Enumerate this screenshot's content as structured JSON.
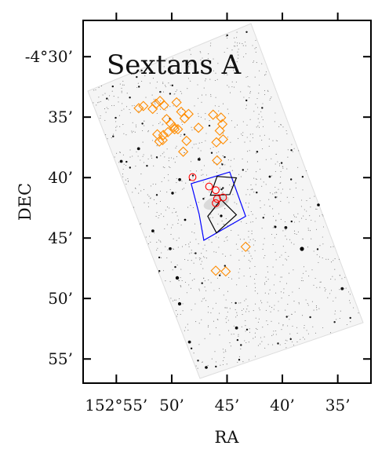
{
  "chart_data": {
    "type": "scatter",
    "title": "Sextans A",
    "xlabel": "RA",
    "ylabel": "DEC",
    "xlim": [
      152.9667,
      152.5333
    ],
    "ylim": [
      -4.95,
      -4.45
    ],
    "x_tick_values": [
      152.9167,
      152.8333,
      152.75,
      152.6667,
      152.5833
    ],
    "x_tick_labels": [
      "152°55’",
      "50’",
      "45’",
      "40’",
      "35’"
    ],
    "y_tick_values": [
      -4.5,
      -4.5833,
      -4.6667,
      -4.75,
      -4.8333,
      -4.9167
    ],
    "y_tick_labels": [
      "-4°30’",
      "35’",
      "40’",
      "45’",
      "50’",
      "55’"
    ],
    "grid": false,
    "background_image": "optical sky image of the Sextans A field, stars shown as dark points",
    "series": [
      {
        "marker": "diamond-open",
        "color": "#ff8c00",
        "points": [
          [
            152.883,
            -4.571
          ],
          [
            152.876,
            -4.568
          ],
          [
            152.862,
            -4.572
          ],
          [
            152.857,
            -4.565
          ],
          [
            152.851,
            -4.561
          ],
          [
            152.845,
            -4.567
          ],
          [
            152.826,
            -4.563
          ],
          [
            152.819,
            -4.576
          ],
          [
            152.814,
            -4.585
          ],
          [
            152.808,
            -4.579
          ],
          [
            152.841,
            -4.586
          ],
          [
            152.835,
            -4.592
          ],
          [
            152.83,
            -4.597
          ],
          [
            152.824,
            -4.6
          ],
          [
            152.855,
            -4.607
          ],
          [
            152.846,
            -4.608
          ],
          [
            152.839,
            -4.604
          ],
          [
            152.829,
            -4.6
          ],
          [
            152.852,
            -4.617
          ],
          [
            152.847,
            -4.615
          ],
          [
            152.811,
            -4.616
          ],
          [
            152.816,
            -4.631
          ],
          [
            152.771,
            -4.58
          ],
          [
            152.759,
            -4.584
          ],
          [
            152.757,
            -4.593
          ],
          [
            152.761,
            -4.602
          ],
          [
            152.756,
            -4.614
          ],
          [
            152.766,
            -4.618
          ],
          [
            152.765,
            -4.643
          ],
          [
            152.722,
            -4.762
          ],
          [
            152.767,
            -4.795
          ],
          [
            152.752,
            -4.796
          ],
          [
            152.793,
            -4.598
          ]
        ]
      },
      {
        "marker": "circle-open",
        "color": "#ff0000",
        "points": [
          [
            152.802,
            -4.666
          ],
          [
            152.777,
            -4.679
          ],
          [
            152.767,
            -4.684
          ],
          [
            152.765,
            -4.696
          ],
          [
            152.767,
            -4.702
          ],
          [
            152.756,
            -4.694
          ]
        ]
      }
    ],
    "footprints": [
      {
        "color": "#0000ff",
        "vertices": [
          [
            152.804,
            -4.675
          ],
          [
            152.746,
            -4.659
          ],
          [
            152.722,
            -4.72
          ],
          [
            152.785,
            -4.753
          ],
          [
            152.792,
            -4.717
          ]
        ]
      },
      {
        "color": "#000000",
        "vertices": [
          [
            152.765,
            -4.665
          ],
          [
            152.736,
            -4.667
          ],
          [
            152.746,
            -4.69
          ],
          [
            152.775,
            -4.691
          ]
        ]
      },
      {
        "color": "#000000",
        "vertices": [
          [
            152.759,
            -4.697
          ],
          [
            152.779,
            -4.72
          ],
          [
            152.766,
            -4.743
          ],
          [
            152.736,
            -4.718
          ]
        ]
      }
    ]
  }
}
